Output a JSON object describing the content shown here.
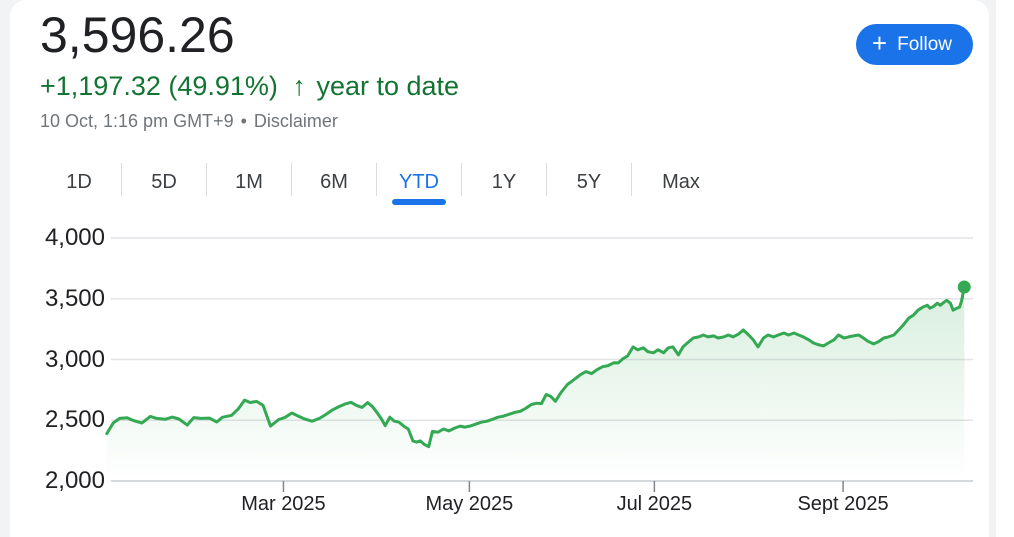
{
  "header": {
    "price": "3,596.26",
    "change": "+1,197.32 (49.91%)",
    "arrow": "↑",
    "change_context": "year to date",
    "timestamp": "10 Oct, 1:16 pm GMT+9",
    "separator": "•",
    "disclaimer": "Disclaimer"
  },
  "follow_button": {
    "icon": "+",
    "label": "Follow"
  },
  "tabs": {
    "items": [
      {
        "label": "1D",
        "active": false
      },
      {
        "label": "5D",
        "active": false
      },
      {
        "label": "1M",
        "active": false
      },
      {
        "label": "6M",
        "active": false
      },
      {
        "label": "YTD",
        "active": true
      },
      {
        "label": "1Y",
        "active": false
      },
      {
        "label": "5Y",
        "active": false
      },
      {
        "label": "Max",
        "active": false
      }
    ]
  },
  "colors": {
    "accent_blue": "#1a73e8",
    "change_green": "#137333",
    "text_dark": "#202124",
    "text_muted": "#70757a",
    "tab_text": "#3c4043"
  },
  "chart_data": {
    "type": "line",
    "unit_x": "months_since_jan1_2025",
    "ylim": [
      2000,
      4000
    ],
    "grid": true,
    "last_value": 3596.26,
    "colors": {
      "line": "#34a853",
      "grid_line": "#e2e4e7",
      "axis_line": "#d6d9dc",
      "tick": "#80868b",
      "fill_top_opacity": 0.24
    },
    "y_ticks": [
      {
        "value": 4000,
        "label": "4,000"
      },
      {
        "value": 3500,
        "label": "3,500"
      },
      {
        "value": 3000,
        "label": "3,000"
      },
      {
        "value": 2500,
        "label": "2,500"
      },
      {
        "value": 2000,
        "label": "2,000"
      }
    ],
    "x_ticks": [
      {
        "m": 1.94,
        "label": "Mar 2025"
      },
      {
        "m": 3.95,
        "label": "May 2025"
      },
      {
        "m": 5.95,
        "label": "Jul 2025"
      },
      {
        "m": 7.99,
        "label": "Sept 2025"
      }
    ],
    "series": [
      [
        0.03,
        2390
      ],
      [
        0.1,
        2478
      ],
      [
        0.17,
        2515
      ],
      [
        0.25,
        2520
      ],
      [
        0.31,
        2500
      ],
      [
        0.41,
        2477
      ],
      [
        0.5,
        2532
      ],
      [
        0.57,
        2515
      ],
      [
        0.66,
        2508
      ],
      [
        0.74,
        2526
      ],
      [
        0.81,
        2510
      ],
      [
        0.9,
        2461
      ],
      [
        0.97,
        2522
      ],
      [
        1.05,
        2515
      ],
      [
        1.14,
        2518
      ],
      [
        1.22,
        2486
      ],
      [
        1.28,
        2524
      ],
      [
        1.38,
        2541
      ],
      [
        1.45,
        2592
      ],
      [
        1.52,
        2666
      ],
      [
        1.58,
        2646
      ],
      [
        1.65,
        2655
      ],
      [
        1.72,
        2622
      ],
      [
        1.8,
        2452
      ],
      [
        1.89,
        2506
      ],
      [
        1.96,
        2524
      ],
      [
        2.03,
        2560
      ],
      [
        2.1,
        2534
      ],
      [
        2.17,
        2510
      ],
      [
        2.25,
        2492
      ],
      [
        2.33,
        2515
      ],
      [
        2.4,
        2548
      ],
      [
        2.47,
        2585
      ],
      [
        2.54,
        2612
      ],
      [
        2.6,
        2632
      ],
      [
        2.67,
        2648
      ],
      [
        2.73,
        2622
      ],
      [
        2.79,
        2606
      ],
      [
        2.85,
        2645
      ],
      [
        2.9,
        2614
      ],
      [
        2.95,
        2565
      ],
      [
        3.0,
        2510
      ],
      [
        3.04,
        2455
      ],
      [
        3.09,
        2525
      ],
      [
        3.14,
        2492
      ],
      [
        3.19,
        2484
      ],
      [
        3.24,
        2452
      ],
      [
        3.29,
        2428
      ],
      [
        3.34,
        2330
      ],
      [
        3.38,
        2320
      ],
      [
        3.42,
        2330
      ],
      [
        3.46,
        2302
      ],
      [
        3.51,
        2282
      ],
      [
        3.55,
        2408
      ],
      [
        3.61,
        2402
      ],
      [
        3.67,
        2428
      ],
      [
        3.73,
        2412
      ],
      [
        3.79,
        2435
      ],
      [
        3.85,
        2452
      ],
      [
        3.9,
        2444
      ],
      [
        3.96,
        2453
      ],
      [
        4.02,
        2468
      ],
      [
        4.08,
        2484
      ],
      [
        4.14,
        2492
      ],
      [
        4.2,
        2508
      ],
      [
        4.26,
        2525
      ],
      [
        4.32,
        2534
      ],
      [
        4.38,
        2549
      ],
      [
        4.44,
        2565
      ],
      [
        4.5,
        2574
      ],
      [
        4.56,
        2598
      ],
      [
        4.62,
        2630
      ],
      [
        4.68,
        2640
      ],
      [
        4.73,
        2638
      ],
      [
        4.78,
        2712
      ],
      [
        4.83,
        2696
      ],
      [
        4.88,
        2656
      ],
      [
        4.94,
        2728
      ],
      [
        5.01,
        2794
      ],
      [
        5.08,
        2834
      ],
      [
        5.15,
        2875
      ],
      [
        5.21,
        2900
      ],
      [
        5.27,
        2884
      ],
      [
        5.33,
        2916
      ],
      [
        5.39,
        2941
      ],
      [
        5.45,
        2950
      ],
      [
        5.51,
        2973
      ],
      [
        5.56,
        2972
      ],
      [
        5.61,
        3006
      ],
      [
        5.66,
        3030
      ],
      [
        5.72,
        3104
      ],
      [
        5.77,
        3080
      ],
      [
        5.83,
        3096
      ],
      [
        5.88,
        3064
      ],
      [
        5.94,
        3055
      ],
      [
        5.99,
        3080
      ],
      [
        6.05,
        3055
      ],
      [
        6.1,
        3096
      ],
      [
        6.15,
        3104
      ],
      [
        6.21,
        3038
      ],
      [
        6.26,
        3104
      ],
      [
        6.32,
        3145
      ],
      [
        6.37,
        3177
      ],
      [
        6.43,
        3186
      ],
      [
        6.48,
        3202
      ],
      [
        6.53,
        3186
      ],
      [
        6.59,
        3194
      ],
      [
        6.64,
        3177
      ],
      [
        6.7,
        3186
      ],
      [
        6.75,
        3202
      ],
      [
        6.8,
        3186
      ],
      [
        6.86,
        3210
      ],
      [
        6.91,
        3243
      ],
      [
        6.97,
        3202
      ],
      [
        7.02,
        3161
      ],
      [
        7.07,
        3104
      ],
      [
        7.13,
        3177
      ],
      [
        7.18,
        3202
      ],
      [
        7.24,
        3186
      ],
      [
        7.29,
        3202
      ],
      [
        7.35,
        3218
      ],
      [
        7.4,
        3202
      ],
      [
        7.46,
        3218
      ],
      [
        7.51,
        3202
      ],
      [
        7.56,
        3186
      ],
      [
        7.62,
        3161
      ],
      [
        7.67,
        3136
      ],
      [
        7.73,
        3120
      ],
      [
        7.78,
        3112
      ],
      [
        7.83,
        3136
      ],
      [
        7.89,
        3161
      ],
      [
        7.94,
        3202
      ],
      [
        8.0,
        3177
      ],
      [
        8.05,
        3186
      ],
      [
        8.1,
        3194
      ],
      [
        8.16,
        3202
      ],
      [
        8.21,
        3177
      ],
      [
        8.26,
        3150
      ],
      [
        8.32,
        3128
      ],
      [
        8.37,
        3145
      ],
      [
        8.43,
        3177
      ],
      [
        8.48,
        3186
      ],
      [
        8.54,
        3202
      ],
      [
        8.59,
        3243
      ],
      [
        8.64,
        3283
      ],
      [
        8.7,
        3340
      ],
      [
        8.75,
        3365
      ],
      [
        8.8,
        3406
      ],
      [
        8.85,
        3430
      ],
      [
        8.9,
        3446
      ],
      [
        8.93,
        3422
      ],
      [
        8.97,
        3438
      ],
      [
        9.01,
        3463
      ],
      [
        9.04,
        3446
      ],
      [
        9.08,
        3471
      ],
      [
        9.11,
        3487
      ],
      [
        9.15,
        3463
      ],
      [
        9.18,
        3406
      ],
      [
        9.22,
        3422
      ],
      [
        9.25,
        3431
      ],
      [
        9.27,
        3480
      ],
      [
        9.3,
        3596.26
      ]
    ]
  }
}
